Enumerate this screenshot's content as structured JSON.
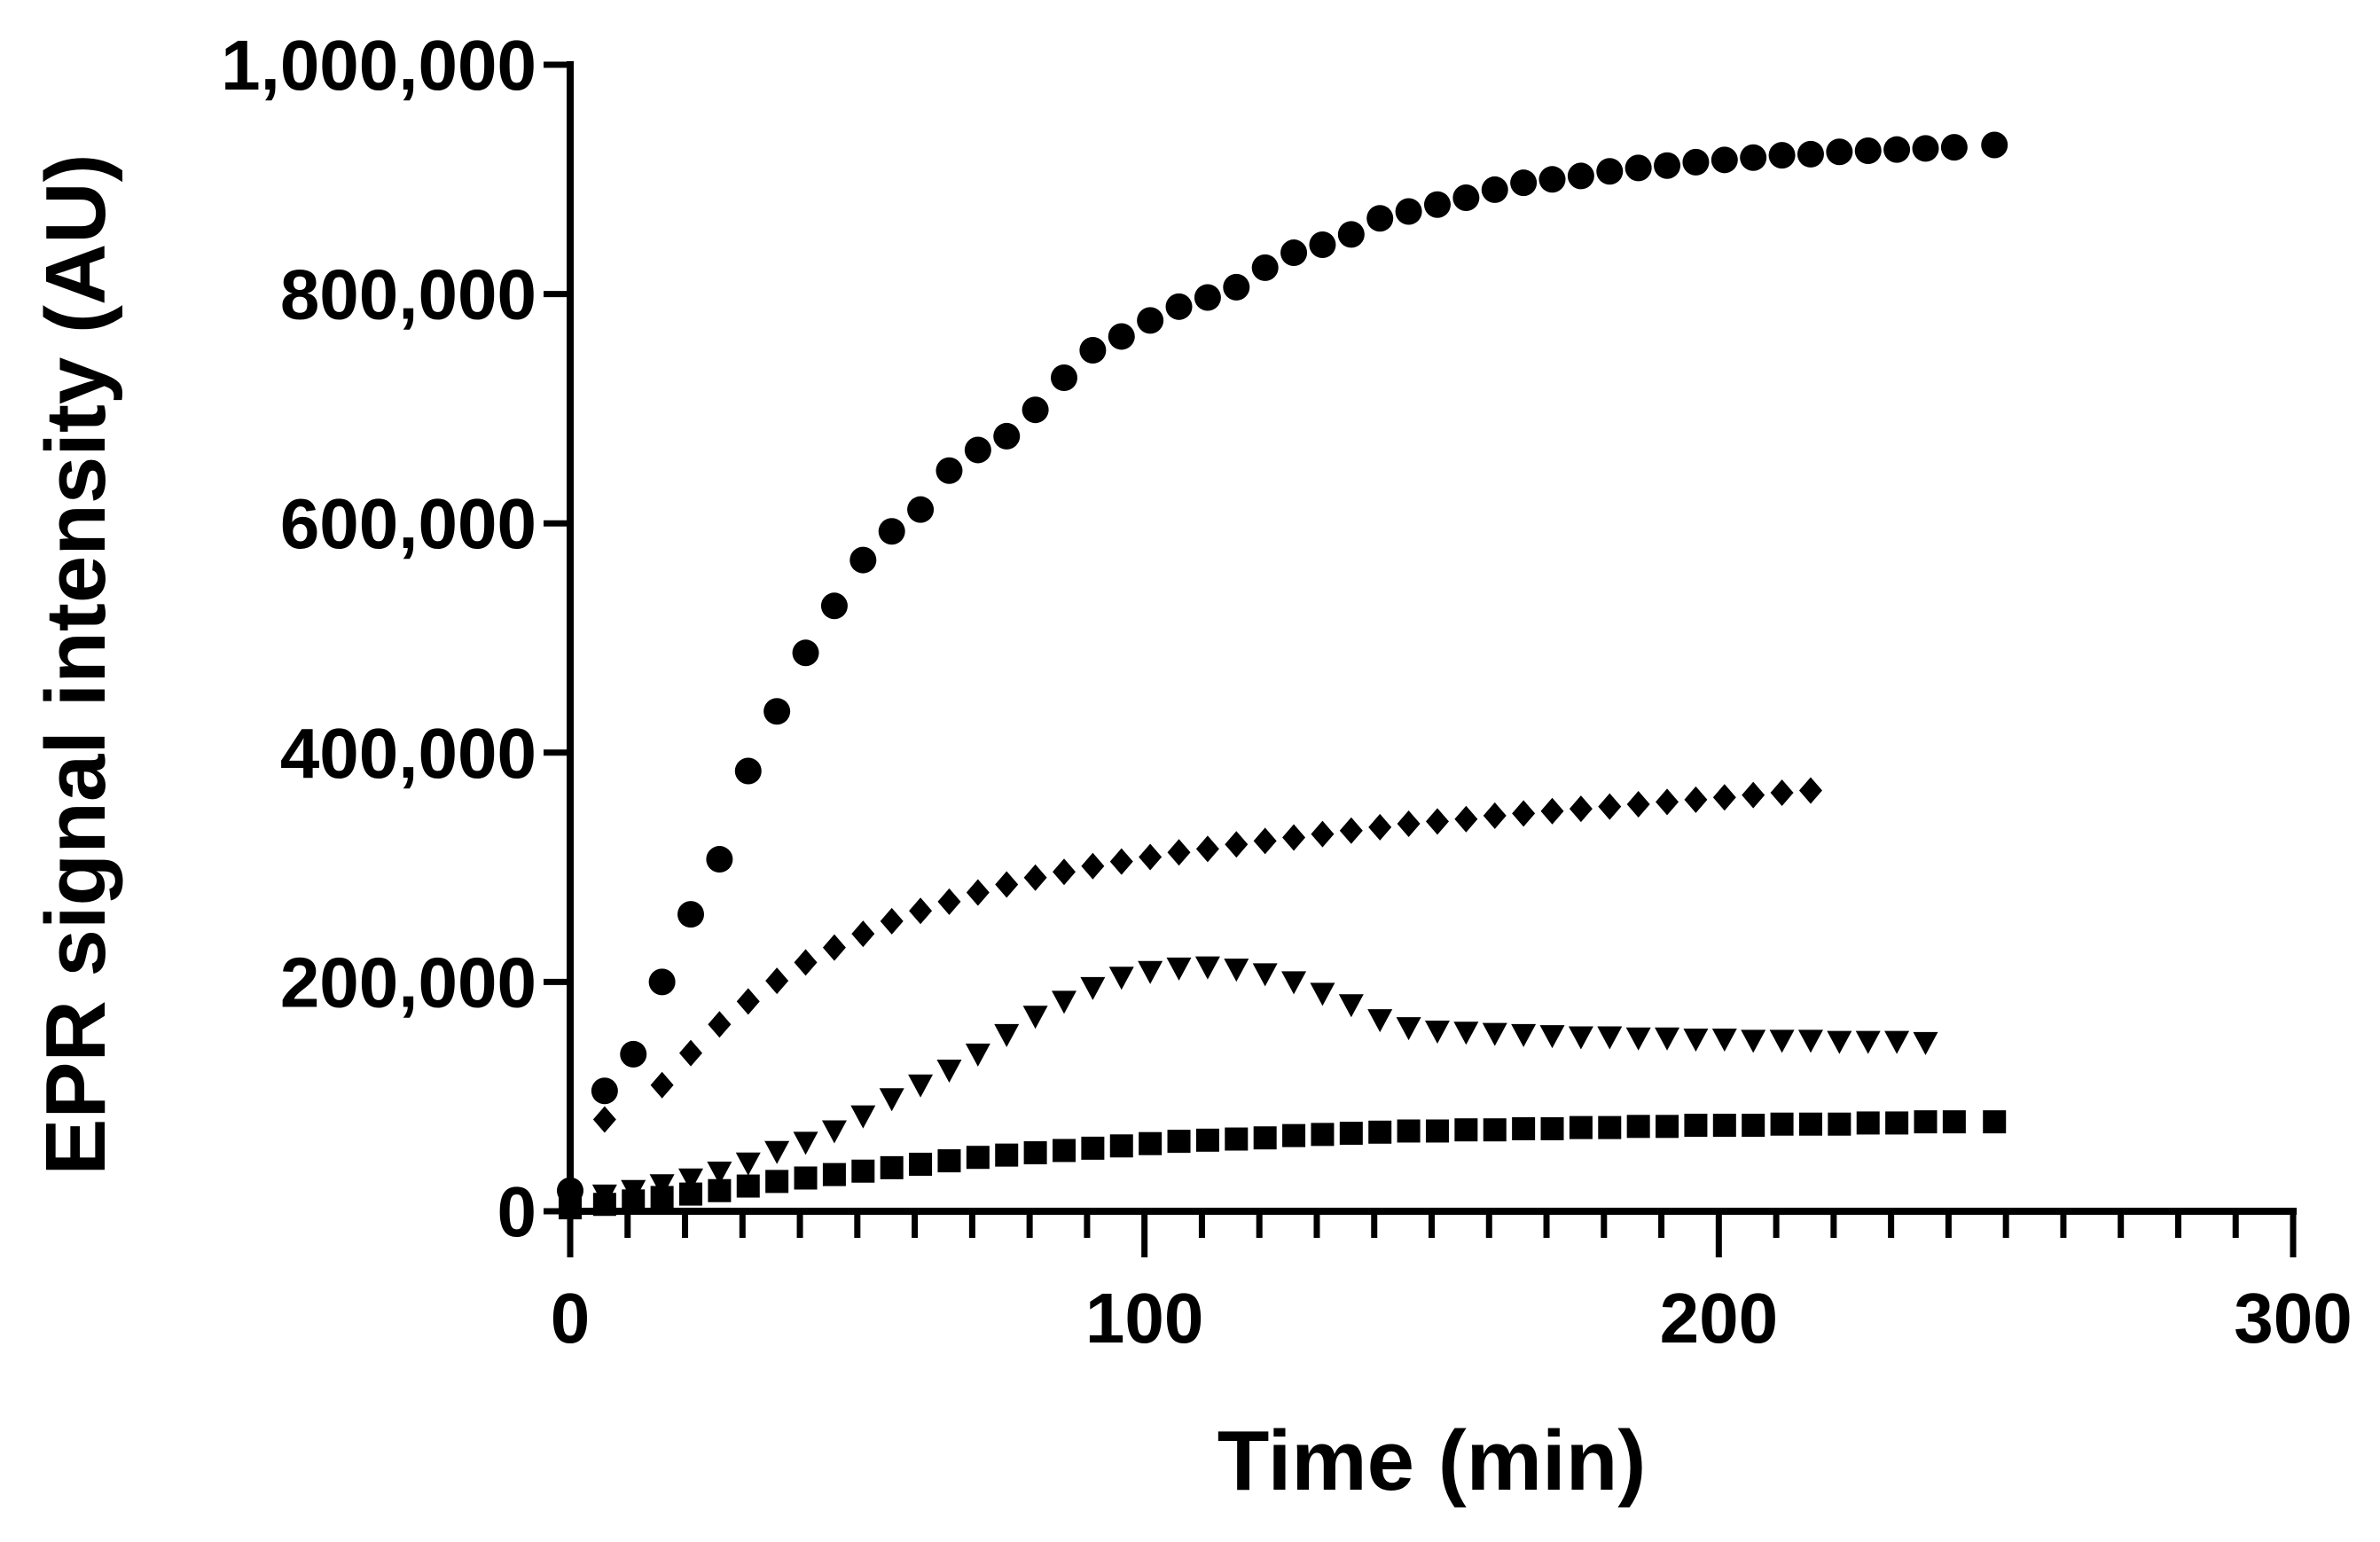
{
  "chart_data": {
    "type": "scatter",
    "title": "",
    "xlabel": "Time (min)",
    "ylabel": "EPR signal intensity (AU)",
    "xlim": [
      0,
      300
    ],
    "ylim": [
      0,
      1000000
    ],
    "x_ticks": [
      0,
      100,
      200,
      300
    ],
    "x_tick_labels": [
      "0",
      "100",
      "200",
      "300"
    ],
    "y_ticks": [
      0,
      200000,
      400000,
      600000,
      800000,
      1000000
    ],
    "y_tick_labels": [
      "0",
      "200,000",
      "400,000",
      "600,000",
      "800,000",
      "1,000,000"
    ],
    "grid": false,
    "legend": null,
    "series": [
      {
        "name": "circles",
        "marker": "circle",
        "color": "#000000",
        "x": [
          0,
          6,
          11,
          16,
          21,
          26,
          31,
          36,
          41,
          46,
          51,
          56,
          61,
          66,
          71,
          76,
          81,
          86,
          91,
          96,
          101,
          106,
          111,
          116,
          121,
          126,
          131,
          136,
          141,
          146,
          151,
          156,
          161,
          166,
          171,
          176,
          181,
          186,
          191,
          196,
          201,
          206,
          211,
          216,
          221,
          226,
          231,
          236,
          241,
          248
        ],
        "y": [
          18000,
          105000,
          137000,
          200000,
          259000,
          307000,
          384000,
          436000,
          487000,
          528000,
          568000,
          593000,
          612000,
          646000,
          664000,
          676000,
          699000,
          727000,
          751000,
          763000,
          777000,
          789000,
          797000,
          806000,
          823000,
          836000,
          843000,
          852000,
          866000,
          872000,
          878000,
          884000,
          891000,
          897000,
          900000,
          903000,
          907000,
          910000,
          912000,
          915000,
          917000,
          919000,
          921000,
          922000,
          924000,
          925000,
          926000,
          927000,
          928000,
          930000
        ]
      },
      {
        "name": "diamonds",
        "marker": "diamond",
        "color": "#000000",
        "x": [
          6,
          16,
          21,
          26,
          31,
          36,
          41,
          46,
          51,
          56,
          61,
          66,
          71,
          76,
          81,
          86,
          91,
          96,
          101,
          106,
          111,
          116,
          121,
          126,
          131,
          136,
          141,
          146,
          151,
          156,
          161,
          166,
          171,
          176,
          181,
          186,
          191,
          196,
          201,
          206,
          211,
          216
        ],
        "y": [
          80000,
          110000,
          138000,
          163000,
          183000,
          201000,
          217000,
          230000,
          242000,
          253000,
          262000,
          270000,
          278000,
          285000,
          291000,
          296000,
          301000,
          305000,
          309000,
          313000,
          316000,
          320000,
          323000,
          326000,
          329000,
          332000,
          335000,
          338000,
          340000,
          342000,
          345000,
          347000,
          349000,
          351000,
          353000,
          355000,
          357000,
          359000,
          361000,
          363000,
          365000,
          367000
        ]
      },
      {
        "name": "triangles",
        "marker": "triangle-down",
        "color": "#000000",
        "x": [
          0,
          6,
          11,
          16,
          21,
          26,
          31,
          36,
          41,
          46,
          51,
          56,
          61,
          66,
          71,
          76,
          81,
          86,
          91,
          96,
          101,
          106,
          111,
          116,
          121,
          126,
          131,
          136,
          141,
          146,
          151,
          156,
          161,
          166,
          171,
          176,
          181,
          186,
          191,
          196,
          201,
          206,
          211,
          216,
          221,
          226,
          231,
          236
        ],
        "y": [
          10000,
          14000,
          18000,
          23000,
          28000,
          34000,
          42000,
          52000,
          60000,
          70000,
          83000,
          98000,
          110000,
          123000,
          137000,
          154000,
          170000,
          183000,
          195000,
          204000,
          209000,
          212000,
          213000,
          211000,
          207000,
          200000,
          190000,
          180000,
          167000,
          160000,
          157000,
          156000,
          155000,
          154000,
          153000,
          152000,
          152000,
          151000,
          151000,
          150000,
          150000,
          149000,
          149000,
          149000,
          148000,
          148000,
          148000,
          147000
        ]
      },
      {
        "name": "squares",
        "marker": "square",
        "color": "#000000",
        "x": [
          0,
          6,
          11,
          16,
          21,
          26,
          31,
          36,
          41,
          46,
          51,
          56,
          61,
          66,
          71,
          76,
          81,
          86,
          91,
          96,
          101,
          106,
          111,
          116,
          121,
          126,
          131,
          136,
          141,
          146,
          151,
          156,
          161,
          166,
          171,
          176,
          181,
          186,
          191,
          196,
          201,
          206,
          211,
          216,
          221,
          226,
          231,
          236,
          241,
          248
        ],
        "y": [
          3000,
          6000,
          9000,
          12000,
          15000,
          18000,
          22000,
          26000,
          29000,
          32000,
          35000,
          38000,
          41000,
          44000,
          47000,
          49000,
          51000,
          53000,
          55000,
          57000,
          59000,
          61000,
          62000,
          63000,
          64000,
          66000,
          67000,
          68000,
          69000,
          70000,
          70000,
          71000,
          71000,
          72000,
          72000,
          73000,
          73000,
          74000,
          74000,
          75000,
          75000,
          75000,
          76000,
          76000,
          76000,
          77000,
          77000,
          78000,
          78000,
          78000
        ]
      }
    ]
  }
}
